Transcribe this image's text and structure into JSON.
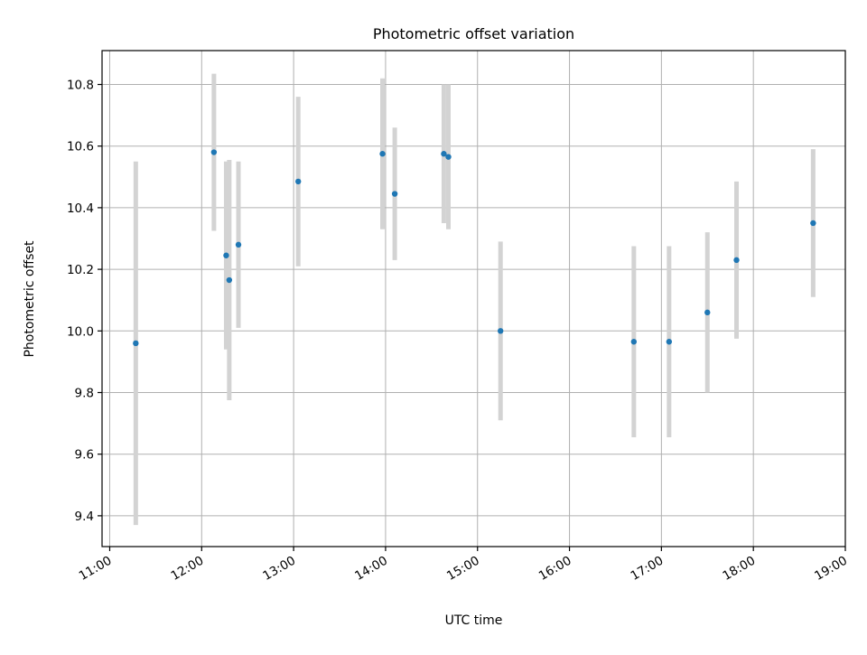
{
  "chart_data": {
    "type": "scatter",
    "title": "Photometric offset variation",
    "xlabel": "UTC time",
    "ylabel": "Photometric offset",
    "x_axis_kind": "time",
    "xlim": [
      "10:55",
      "19:00"
    ],
    "ylim": [
      9.3,
      10.91
    ],
    "x_ticks": [
      "11:00",
      "12:00",
      "13:00",
      "14:00",
      "15:00",
      "16:00",
      "17:00",
      "18:00",
      "19:00"
    ],
    "y_ticks": [
      9.4,
      9.6,
      9.8,
      10.0,
      10.2,
      10.4,
      10.6,
      10.8
    ],
    "y_tick_labels": [
      "9.4",
      "9.6",
      "9.8",
      "10.0",
      "10.2",
      "10.4",
      "10.6",
      "10.8"
    ],
    "grid": true,
    "legend": "none",
    "series": [
      {
        "marker_color": "#1f77b4",
        "errorbar_color": "#d3d3d3",
        "points": [
          {
            "time": "11:17",
            "y": 9.96,
            "yerr": 0.59
          },
          {
            "time": "12:08",
            "y": 10.58,
            "yerr": 0.255
          },
          {
            "time": "12:16",
            "y": 10.245,
            "yerr": 0.305
          },
          {
            "time": "12:18",
            "y": 10.165,
            "yerr": 0.39
          },
          {
            "time": "12:24",
            "y": 10.28,
            "yerr": 0.27
          },
          {
            "time": "13:03",
            "y": 10.485,
            "yerr": 0.275
          },
          {
            "time": "13:58",
            "y": 10.575,
            "yerr": 0.245
          },
          {
            "time": "14:06",
            "y": 10.445,
            "yerr": 0.215
          },
          {
            "time": "14:38",
            "y": 10.575,
            "yerr": 0.225
          },
          {
            "time": "14:41",
            "y": 10.565,
            "yerr": 0.235
          },
          {
            "time": "15:15",
            "y": 10.0,
            "yerr": 0.29
          },
          {
            "time": "16:42",
            "y": 9.965,
            "yerr": 0.31
          },
          {
            "time": "17:05",
            "y": 9.965,
            "yerr": 0.31
          },
          {
            "time": "17:30",
            "y": 10.06,
            "yerr": 0.26
          },
          {
            "time": "17:49",
            "y": 10.23,
            "yerr": 0.255
          },
          {
            "time": "18:39",
            "y": 10.35,
            "yerr": 0.24
          }
        ]
      }
    ]
  }
}
